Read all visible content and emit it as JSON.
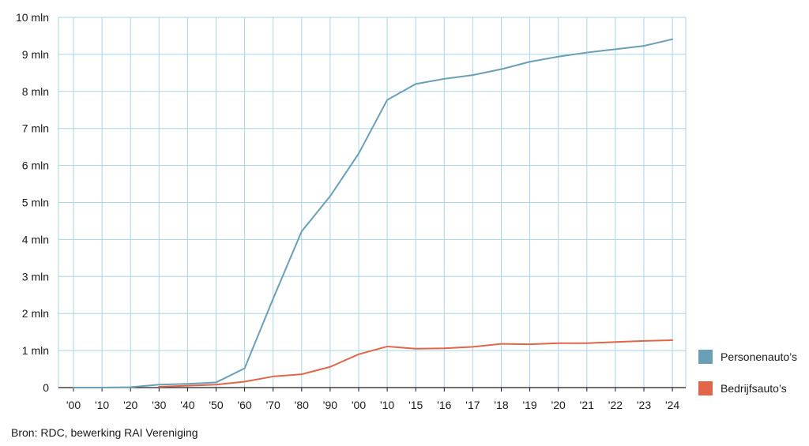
{
  "chart_data": {
    "type": "line",
    "categories": [
      "'00",
      "'10",
      "'20",
      "'30",
      "'40",
      "'50",
      "'60",
      "'70",
      "'80",
      "'90",
      "'00",
      "'10",
      "'15",
      "'16",
      "'17",
      "'18",
      "'19",
      "'20",
      "'21",
      "'22",
      "'23",
      "'24"
    ],
    "y_tick_labels": [
      "0",
      "1 mln",
      "2 mln",
      "3 mln",
      "4 mln",
      "5 mln",
      "6 mln",
      "7 mln",
      "8 mln",
      "9 mln",
      "10 mln"
    ],
    "ylim": [
      0,
      10
    ],
    "grid": true,
    "legend_position": "right-bottom",
    "series": [
      {
        "name": "Personenauto’s",
        "color": "#6a9fb5",
        "values": [
          0,
          0,
          0.01,
          0.08,
          0.1,
          0.14,
          0.52,
          2.4,
          4.22,
          5.17,
          6.32,
          7.77,
          8.2,
          8.34,
          8.44,
          8.6,
          8.8,
          8.94,
          9.05,
          9.14,
          9.23,
          9.41
        ]
      },
      {
        "name": "Bedrijfsauto’s",
        "color": "#e0664a",
        "values": [
          null,
          null,
          null,
          0.02,
          0.05,
          0.08,
          0.16,
          0.3,
          0.36,
          0.56,
          0.9,
          1.11,
          1.05,
          1.06,
          1.1,
          1.18,
          1.17,
          1.2,
          1.2,
          1.23,
          1.26,
          1.28
        ]
      }
    ],
    "source": "Bron: RDC, bewerking RAI Vereniging"
  }
}
